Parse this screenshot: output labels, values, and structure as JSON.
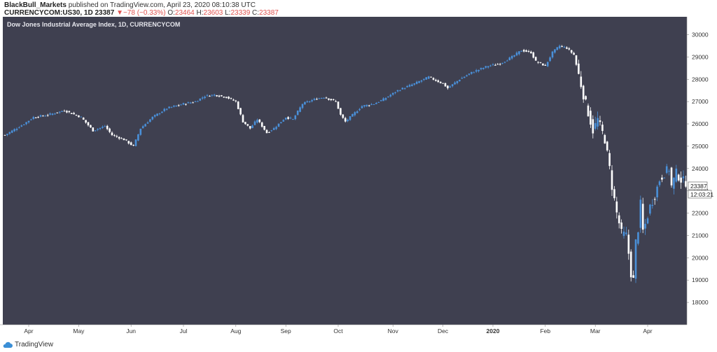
{
  "header": {
    "user": "BlackBull_Markets",
    "published": "published on TradingView.com, April 23, 2020 08:10:38 UTC",
    "symbol": "CURRENCYCOM:US30, 1D",
    "last": "23387",
    "change": "−78 (−0.33%)",
    "o_label": "O:",
    "o_value": "23464",
    "h_label": "H:",
    "h_value": "23603",
    "l_label": "L:",
    "l_value": "23339",
    "c_label": "C:",
    "c_value": "23387"
  },
  "footer": {
    "brand": "TradingView"
  },
  "colors": {
    "background": "#3f4050",
    "up": "#4a90d9",
    "down": "#ffffff",
    "axis_text": "#333333"
  },
  "chart_data": {
    "type": "candlestick",
    "title": "Dow Jones Industrial Average Index, 1D, CURRENCYCOM",
    "ylim": [
      17000,
      30800
    ],
    "y_ticks": [
      18000,
      19000,
      20000,
      21000,
      22000,
      23000,
      24000,
      25000,
      26000,
      27000,
      28000,
      29000,
      30000
    ],
    "x_labels": [
      {
        "label": "Apr",
        "index": 10
      },
      {
        "label": "May",
        "index": 31
      },
      {
        "label": "Jun",
        "index": 53
      },
      {
        "label": "Jul",
        "index": 75
      },
      {
        "label": "Aug",
        "index": 97
      },
      {
        "label": "Sep",
        "index": 118
      },
      {
        "label": "Oct",
        "index": 140
      },
      {
        "label": "Nov",
        "index": 163
      },
      {
        "label": "Dec",
        "index": 184
      },
      {
        "label": "2020",
        "index": 205
      },
      {
        "label": "Feb",
        "index": 227
      },
      {
        "label": "Mar",
        "index": 248
      },
      {
        "label": "Apr",
        "index": 270
      }
    ],
    "last_price": "23387",
    "countdown": "12:03:21",
    "anchors": [
      [
        0,
        25500
      ],
      [
        8,
        26000
      ],
      [
        12,
        26300
      ],
      [
        18,
        26400
      ],
      [
        25,
        26600
      ],
      [
        32,
        26300
      ],
      [
        37,
        25700
      ],
      [
        42,
        25900
      ],
      [
        45,
        25500
      ],
      [
        50,
        25300
      ],
      [
        54,
        25000
      ],
      [
        57,
        25800
      ],
      [
        62,
        26300
      ],
      [
        68,
        26700
      ],
      [
        75,
        26900
      ],
      [
        80,
        27000
      ],
      [
        84,
        27250
      ],
      [
        88,
        27300
      ],
      [
        93,
        27200
      ],
      [
        97,
        27000
      ],
      [
        100,
        26100
      ],
      [
        103,
        25800
      ],
      [
        106,
        26200
      ],
      [
        110,
        25600
      ],
      [
        113,
        25800
      ],
      [
        118,
        26300
      ],
      [
        121,
        26200
      ],
      [
        125,
        26900
      ],
      [
        130,
        27100
      ],
      [
        134,
        27200
      ],
      [
        139,
        27000
      ],
      [
        141,
        26400
      ],
      [
        143,
        26100
      ],
      [
        147,
        26500
      ],
      [
        150,
        26800
      ],
      [
        155,
        26900
      ],
      [
        159,
        27100
      ],
      [
        165,
        27500
      ],
      [
        172,
        27800
      ],
      [
        178,
        28100
      ],
      [
        184,
        27800
      ],
      [
        186,
        27600
      ],
      [
        191,
        28000
      ],
      [
        196,
        28300
      ],
      [
        203,
        28600
      ],
      [
        208,
        28700
      ],
      [
        213,
        29000
      ],
      [
        217,
        29300
      ],
      [
        221,
        29200
      ],
      [
        223,
        28800
      ],
      [
        227,
        28600
      ],
      [
        230,
        29200
      ],
      [
        233,
        29500
      ],
      [
        236,
        29400
      ],
      [
        239,
        29100
      ],
      [
        241,
        28200
      ],
      [
        243,
        27300
      ],
      [
        245,
        26500
      ],
      [
        247,
        25700
      ],
      [
        249,
        26200
      ],
      [
        252,
        25300
      ],
      [
        254,
        24000
      ],
      [
        255,
        23200
      ],
      [
        257,
        22000
      ],
      [
        259,
        21100
      ],
      [
        261,
        21000
      ],
      [
        262,
        20200
      ],
      [
        263,
        19300
      ],
      [
        264,
        19000
      ],
      [
        265,
        20700
      ],
      [
        266,
        21300
      ],
      [
        267,
        22400
      ],
      [
        268,
        21200
      ],
      [
        269,
        21500
      ],
      [
        271,
        22300
      ],
      [
        273,
        22800
      ],
      [
        275,
        23500
      ],
      [
        277,
        23800
      ],
      [
        279,
        24000
      ],
      [
        280,
        23200
      ],
      [
        282,
        23800
      ],
      [
        284,
        23500
      ],
      [
        286,
        23387
      ]
    ]
  }
}
